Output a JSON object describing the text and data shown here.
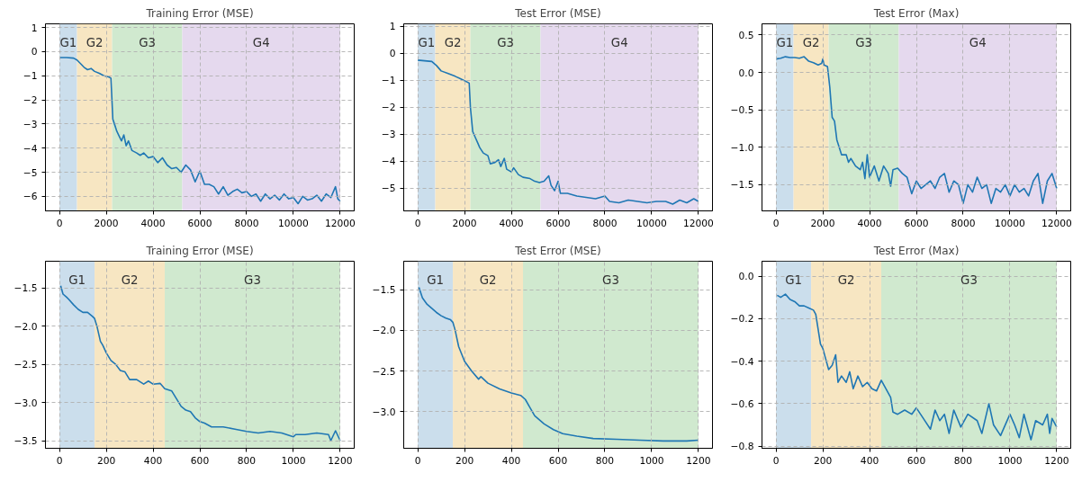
{
  "chart_data": [
    {
      "type": "line",
      "title": "Training Error (MSE)",
      "grid": true,
      "xlim": [
        -600,
        12600
      ],
      "ylim": [
        -6.6,
        1.15
      ],
      "xticks": [
        0,
        2000,
        4000,
        6000,
        8000,
        10000,
        12000
      ],
      "yticks": [
        1,
        0,
        {
          "value": -1,
          "label": "−1"
        },
        {
          "value": -2,
          "label": "−2"
        },
        {
          "value": -3,
          "label": "−3"
        },
        {
          "value": -4,
          "label": "−4"
        },
        {
          "value": -5,
          "label": "−5"
        },
        {
          "value": -6,
          "label": "−6"
        }
      ],
      "bands": [
        {
          "axis": "x",
          "from": 0,
          "to": 750,
          "label": "G1",
          "color": "#cbdeec"
        },
        {
          "axis": "x",
          "from": 750,
          "to": 2250,
          "label": "G2",
          "color": "#f7e6c2"
        },
        {
          "axis": "x",
          "from": 2250,
          "to": 5250,
          "label": "G3",
          "color": "#d0e9cf"
        },
        {
          "axis": "x",
          "from": 5250,
          "to": 12000,
          "label": "G4",
          "color": "#e5d9ee"
        }
      ],
      "series": [
        {
          "color": "#1f77b4",
          "x": [
            0,
            300,
            600,
            750,
            900,
            1050,
            1200,
            1350,
            1500,
            1700,
            1900,
            2100,
            2200,
            2280,
            2350,
            2450,
            2550,
            2650,
            2750,
            2850,
            2950,
            3100,
            3300,
            3450,
            3600,
            3800,
            4000,
            4200,
            4400,
            4600,
            4800,
            5000,
            5200,
            5400,
            5600,
            5800,
            6000,
            6200,
            6400,
            6600,
            6800,
            7000,
            7200,
            7400,
            7600,
            7800,
            8000,
            8200,
            8400,
            8600,
            8800,
            9000,
            9200,
            9400,
            9600,
            9800,
            10000,
            10200,
            10400,
            10600,
            10800,
            11000,
            11200,
            11400,
            11600,
            11800,
            11900,
            12000
          ],
          "values": [
            -0.25,
            -0.25,
            -0.27,
            -0.35,
            -0.5,
            -0.65,
            -0.75,
            -0.7,
            -0.82,
            -0.9,
            -1.0,
            -1.05,
            -1.1,
            -2.8,
            -3.0,
            -3.3,
            -3.5,
            -3.7,
            -3.45,
            -3.9,
            -3.7,
            -4.1,
            -4.2,
            -4.3,
            -4.2,
            -4.4,
            -4.35,
            -4.6,
            -4.4,
            -4.7,
            -4.85,
            -4.8,
            -5.0,
            -4.7,
            -4.9,
            -5.4,
            -4.95,
            -5.5,
            -5.5,
            -5.6,
            -5.9,
            -5.6,
            -5.95,
            -5.8,
            -5.7,
            -5.85,
            -5.8,
            -6.0,
            -5.9,
            -6.2,
            -5.9,
            -6.1,
            -5.95,
            -6.15,
            -5.9,
            -6.1,
            -6.05,
            -6.3,
            -6.0,
            -6.15,
            -6.1,
            -5.95,
            -6.2,
            -5.9,
            -6.05,
            -5.6,
            -6.1,
            -6.2
          ]
        }
      ]
    },
    {
      "type": "line",
      "title": "Test Error (MSE)",
      "grid": true,
      "xlim": [
        -600,
        12600
      ],
      "ylim": [
        -5.85,
        1.1
      ],
      "xticks": [
        0,
        2000,
        4000,
        6000,
        8000,
        10000,
        12000
      ],
      "yticks": [
        1,
        0,
        {
          "value": -1,
          "label": "−1"
        },
        {
          "value": -2,
          "label": "−2"
        },
        {
          "value": -3,
          "label": "−3"
        },
        {
          "value": -4,
          "label": "−4"
        },
        {
          "value": -5,
          "label": "−5"
        }
      ],
      "bands": [
        {
          "axis": "x",
          "from": 0,
          "to": 750,
          "label": "G1",
          "color": "#cbdeec"
        },
        {
          "axis": "x",
          "from": 750,
          "to": 2250,
          "label": "G2",
          "color": "#f7e6c2"
        },
        {
          "axis": "x",
          "from": 2250,
          "to": 5250,
          "label": "G3",
          "color": "#d0e9cf"
        },
        {
          "axis": "x",
          "from": 5250,
          "to": 12000,
          "label": "G4",
          "color": "#e5d9ee"
        }
      ],
      "series": [
        {
          "color": "#1f77b4",
          "x": [
            0,
            600,
            800,
            1000,
            1300,
            1600,
            1900,
            2200,
            2250,
            2350,
            2450,
            2550,
            2650,
            2800,
            3000,
            3100,
            3300,
            3450,
            3550,
            3700,
            3800,
            4000,
            4100,
            4300,
            4500,
            4800,
            5000,
            5200,
            5400,
            5600,
            5700,
            5850,
            6000,
            6100,
            6400,
            6800,
            7200,
            7600,
            8000,
            8200,
            8600,
            9000,
            9400,
            9800,
            10200,
            10600,
            10900,
            11200,
            11500,
            11800,
            12000
          ],
          "values": [
            -0.25,
            -0.3,
            -0.45,
            -0.65,
            -0.75,
            -0.85,
            -0.97,
            -1.1,
            -2.0,
            -2.9,
            -3.1,
            -3.3,
            -3.5,
            -3.7,
            -3.8,
            -4.1,
            -4.05,
            -3.95,
            -4.2,
            -3.9,
            -4.3,
            -4.4,
            -4.25,
            -4.5,
            -4.6,
            -4.65,
            -4.75,
            -4.8,
            -4.75,
            -4.55,
            -4.9,
            -5.1,
            -4.75,
            -5.2,
            -5.2,
            -5.3,
            -5.35,
            -5.4,
            -5.3,
            -5.5,
            -5.55,
            -5.45,
            -5.5,
            -5.55,
            -5.5,
            -5.5,
            -5.6,
            -5.45,
            -5.55,
            -5.4,
            -5.5
          ]
        }
      ]
    },
    {
      "type": "line",
      "title": "Test Error (Max)",
      "grid": true,
      "xlim": [
        -600,
        12600
      ],
      "ylim": [
        -1.85,
        0.65
      ],
      "xticks": [
        0,
        2000,
        4000,
        6000,
        8000,
        10000,
        12000
      ],
      "yticks": [
        0.5,
        {
          "value": 0,
          "label": "0.0"
        },
        {
          "value": -0.5,
          "label": "−0.5"
        },
        {
          "value": -1,
          "label": "−1.0"
        },
        {
          "value": -1.5,
          "label": "−1.5"
        }
      ],
      "bands": [
        {
          "axis": "x",
          "from": 0,
          "to": 750,
          "label": "G1",
          "color": "#cbdeec"
        },
        {
          "axis": "x",
          "from": 750,
          "to": 2250,
          "label": "G2",
          "color": "#f7e6c2"
        },
        {
          "axis": "x",
          "from": 2250,
          "to": 5250,
          "label": "G3",
          "color": "#d0e9cf"
        },
        {
          "axis": "x",
          "from": 5250,
          "to": 12000,
          "label": "G4",
          "color": "#e5d9ee"
        }
      ],
      "series": [
        {
          "color": "#1f77b4",
          "x": [
            0,
            200,
            400,
            600,
            800,
            1000,
            1200,
            1400,
            1600,
            1800,
            1950,
            2000,
            2050,
            2200,
            2300,
            2400,
            2500,
            2600,
            2700,
            2800,
            3000,
            3100,
            3200,
            3400,
            3600,
            3700,
            3800,
            3900,
            4000,
            4200,
            4400,
            4600,
            4800,
            4900,
            5000,
            5200,
            5400,
            5600,
            5800,
            6000,
            6200,
            6400,
            6600,
            6800,
            7000,
            7200,
            7400,
            7600,
            7800,
            8000,
            8200,
            8400,
            8600,
            8800,
            9000,
            9200,
            9400,
            9600,
            9800,
            10000,
            10200,
            10400,
            10600,
            10800,
            11000,
            11200,
            11400,
            11600,
            11800,
            12000
          ],
          "values": [
            0.18,
            0.19,
            0.21,
            0.2,
            0.2,
            0.19,
            0.21,
            0.15,
            0.13,
            0.1,
            0.12,
            0.18,
            0.1,
            0.08,
            -0.2,
            -0.6,
            -0.65,
            -0.9,
            -1.0,
            -1.1,
            -1.1,
            -1.2,
            -1.15,
            -1.25,
            -1.3,
            -1.2,
            -1.42,
            -1.1,
            -1.4,
            -1.25,
            -1.45,
            -1.25,
            -1.35,
            -1.52,
            -1.3,
            -1.28,
            -1.35,
            -1.4,
            -1.62,
            -1.45,
            -1.55,
            -1.5,
            -1.45,
            -1.55,
            -1.4,
            -1.35,
            -1.6,
            -1.45,
            -1.5,
            -1.75,
            -1.5,
            -1.6,
            -1.4,
            -1.55,
            -1.5,
            -1.75,
            -1.55,
            -1.6,
            -1.5,
            -1.65,
            -1.5,
            -1.6,
            -1.55,
            -1.65,
            -1.45,
            -1.35,
            -1.75,
            -1.45,
            -1.35,
            -1.55
          ]
        }
      ]
    },
    {
      "type": "line",
      "title": "Training Error (MSE)",
      "grid": true,
      "xlim": [
        -60,
        1260
      ],
      "ylim": [
        -3.6,
        -1.15
      ],
      "xticks": [
        0,
        200,
        400,
        600,
        800,
        1000,
        1200
      ],
      "yticks": [
        {
          "value": -1.5,
          "label": "−1.5"
        },
        {
          "value": -2,
          "label": "−2.0"
        },
        {
          "value": -2.5,
          "label": "−2.5"
        },
        {
          "value": -3,
          "label": "−3.0"
        },
        {
          "value": -3.5,
          "label": "−3.5"
        }
      ],
      "bands": [
        {
          "axis": "x",
          "from": 0,
          "to": 150,
          "label": "G1",
          "color": "#cbdeec"
        },
        {
          "axis": "x",
          "from": 150,
          "to": 450,
          "label": "G2",
          "color": "#f7e6c2"
        },
        {
          "axis": "x",
          "from": 450,
          "to": 1200,
          "label": "G3",
          "color": "#d0e9cf"
        }
      ],
      "series": [
        {
          "color": "#1f77b4",
          "x": [
            5,
            15,
            30,
            40,
            60,
            80,
            100,
            120,
            140,
            150,
            160,
            175,
            185,
            200,
            220,
            240,
            260,
            280,
            300,
            330,
            360,
            380,
            400,
            430,
            450,
            480,
            500,
            520,
            540,
            560,
            580,
            600,
            620,
            650,
            700,
            750,
            800,
            850,
            900,
            950,
            1000,
            1010,
            1050,
            1100,
            1150,
            1160,
            1180,
            1200
          ],
          "values": [
            -1.47,
            -1.58,
            -1.62,
            -1.65,
            -1.72,
            -1.78,
            -1.82,
            -1.82,
            -1.87,
            -1.9,
            -2.0,
            -2.2,
            -2.25,
            -2.35,
            -2.45,
            -2.5,
            -2.58,
            -2.6,
            -2.7,
            -2.7,
            -2.76,
            -2.72,
            -2.76,
            -2.75,
            -2.82,
            -2.85,
            -2.95,
            -3.05,
            -3.1,
            -3.12,
            -3.2,
            -3.25,
            -3.27,
            -3.32,
            -3.32,
            -3.35,
            -3.38,
            -3.4,
            -3.38,
            -3.4,
            -3.45,
            -3.42,
            -3.42,
            -3.4,
            -3.42,
            -3.5,
            -3.37,
            -3.5
          ]
        }
      ]
    },
    {
      "type": "line",
      "title": "Test Error (MSE)",
      "grid": true,
      "xlim": [
        -60,
        1260
      ],
      "ylim": [
        -3.45,
        -1.15
      ],
      "xticks": [
        0,
        200,
        400,
        600,
        800,
        1000,
        1200
      ],
      "yticks": [
        {
          "value": -1.5,
          "label": "−1.5"
        },
        {
          "value": -2,
          "label": "−2.0"
        },
        {
          "value": -2.5,
          "label": "−2.5"
        },
        {
          "value": -3,
          "label": "−3.0"
        }
      ],
      "bands": [
        {
          "axis": "x",
          "from": 0,
          "to": 150,
          "label": "G1",
          "color": "#cbdeec"
        },
        {
          "axis": "x",
          "from": 150,
          "to": 450,
          "label": "G2",
          "color": "#f7e6c2"
        },
        {
          "axis": "x",
          "from": 450,
          "to": 1200,
          "label": "G3",
          "color": "#d0e9cf"
        }
      ],
      "series": [
        {
          "color": "#1f77b4",
          "x": [
            5,
            20,
            40,
            60,
            80,
            100,
            120,
            140,
            150,
            160,
            175,
            200,
            230,
            260,
            270,
            300,
            350,
            400,
            440,
            460,
            480,
            500,
            540,
            580,
            620,
            680,
            750,
            850,
            950,
            1050,
            1150,
            1200
          ],
          "values": [
            -1.47,
            -1.6,
            -1.68,
            -1.73,
            -1.78,
            -1.82,
            -1.85,
            -1.87,
            -1.9,
            -2.0,
            -2.2,
            -2.38,
            -2.5,
            -2.6,
            -2.57,
            -2.65,
            -2.72,
            -2.77,
            -2.8,
            -2.85,
            -2.95,
            -3.05,
            -3.15,
            -3.22,
            -3.27,
            -3.3,
            -3.33,
            -3.34,
            -3.35,
            -3.36,
            -3.36,
            -3.35
          ]
        }
      ]
    },
    {
      "type": "line",
      "title": "Test Error (Max)",
      "grid": true,
      "xlim": [
        -60,
        1260
      ],
      "ylim": [
        -0.81,
        0.07
      ],
      "xticks": [
        0,
        200,
        400,
        600,
        800,
        1000,
        1200
      ],
      "yticks": [
        {
          "value": 0,
          "label": "0.0"
        },
        {
          "value": -0.2,
          "label": "−0.2"
        },
        {
          "value": -0.4,
          "label": "−0.4"
        },
        {
          "value": -0.6,
          "label": "−0.6"
        },
        {
          "value": -0.8,
          "label": "−0.8"
        }
      ],
      "bands": [
        {
          "axis": "x",
          "from": 0,
          "to": 150,
          "label": "G1",
          "color": "#cbdeec"
        },
        {
          "axis": "x",
          "from": 150,
          "to": 450,
          "label": "G2",
          "color": "#f7e6c2"
        },
        {
          "axis": "x",
          "from": 450,
          "to": 1200,
          "label": "G3",
          "color": "#d0e9cf"
        }
      ],
      "series": [
        {
          "color": "#1f77b4",
          "x": [
            5,
            20,
            40,
            60,
            80,
            100,
            120,
            140,
            160,
            170,
            180,
            190,
            200,
            210,
            225,
            240,
            255,
            265,
            280,
            300,
            315,
            330,
            350,
            370,
            390,
            410,
            430,
            450,
            470,
            490,
            500,
            520,
            550,
            580,
            600,
            630,
            660,
            680,
            700,
            720,
            740,
            760,
            790,
            820,
            860,
            880,
            910,
            930,
            960,
            1000,
            1020,
            1040,
            1060,
            1090,
            1110,
            1140,
            1160,
            1170,
            1180,
            1200
          ],
          "values": [
            -0.09,
            -0.1,
            -0.085,
            -0.11,
            -0.12,
            -0.14,
            -0.14,
            -0.15,
            -0.16,
            -0.18,
            -0.25,
            -0.32,
            -0.34,
            -0.38,
            -0.44,
            -0.42,
            -0.37,
            -0.5,
            -0.47,
            -0.5,
            -0.45,
            -0.53,
            -0.47,
            -0.52,
            -0.5,
            -0.53,
            -0.54,
            -0.49,
            -0.53,
            -0.57,
            -0.64,
            -0.65,
            -0.63,
            -0.65,
            -0.62,
            -0.67,
            -0.72,
            -0.63,
            -0.68,
            -0.65,
            -0.74,
            -0.63,
            -0.71,
            -0.65,
            -0.68,
            -0.74,
            -0.6,
            -0.7,
            -0.75,
            -0.65,
            -0.7,
            -0.76,
            -0.65,
            -0.77,
            -0.68,
            -0.7,
            -0.65,
            -0.74,
            -0.67,
            -0.71
          ]
        }
      ]
    }
  ]
}
